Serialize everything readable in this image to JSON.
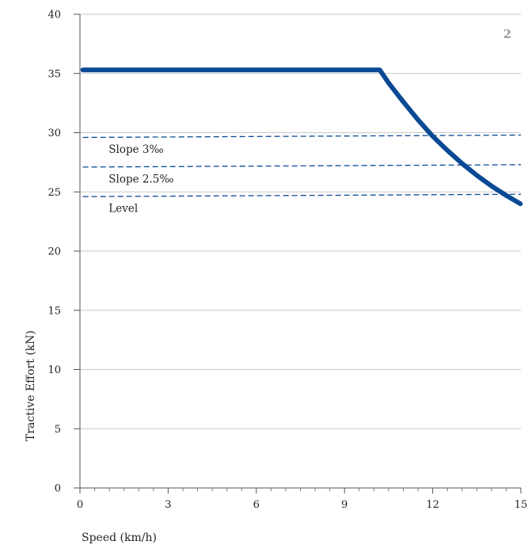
{
  "chart_data": {
    "type": "line",
    "panel_number": "2",
    "xlabel": "Speed (km/h)",
    "ylabel": "Tractive Effort (kN)",
    "xlim": [
      0,
      15
    ],
    "ylim": [
      0,
      40
    ],
    "x_ticks": [
      0,
      3,
      6,
      9,
      12,
      15
    ],
    "y_ticks": [
      0,
      5,
      10,
      15,
      20,
      25,
      30,
      35,
      40
    ],
    "x_minor_step": 0.5,
    "grid": "horizontal",
    "series": [
      {
        "style": "solid-thick",
        "color": "#0a4a94",
        "points": [
          [
            0.1,
            35.3
          ],
          [
            10.2,
            35.3
          ],
          [
            10.5,
            34.2
          ],
          [
            11.0,
            32.6
          ],
          [
            11.5,
            31.1
          ],
          [
            12.0,
            29.7
          ],
          [
            12.5,
            28.5
          ],
          [
            13.0,
            27.4
          ],
          [
            13.5,
            26.4
          ],
          [
            14.0,
            25.5
          ],
          [
            14.5,
            24.7
          ],
          [
            14.98,
            24.0
          ]
        ]
      },
      {
        "name": "Slope 3‰",
        "style": "dashed",
        "color": "#0a4a94",
        "points": [
          [
            0.1,
            29.6
          ],
          [
            15.0,
            29.8
          ]
        ]
      },
      {
        "name": "Slope 2.5‰",
        "style": "dashed",
        "color": "#0a4a94",
        "points": [
          [
            0.1,
            27.1
          ],
          [
            15.0,
            27.3
          ]
        ]
      },
      {
        "name": "Level",
        "style": "dashed",
        "color": "#0a4a94",
        "points": [
          [
            0.1,
            24.6
          ],
          [
            15.0,
            24.8
          ]
        ]
      }
    ],
    "annotations": [
      {
        "text": "Slope 3‰",
        "x": 0.6,
        "y": 28.3
      },
      {
        "text": "Slope 2.5‰",
        "x": 0.6,
        "y": 25.8
      },
      {
        "text": "Level",
        "x": 0.6,
        "y": 23.3
      }
    ]
  }
}
